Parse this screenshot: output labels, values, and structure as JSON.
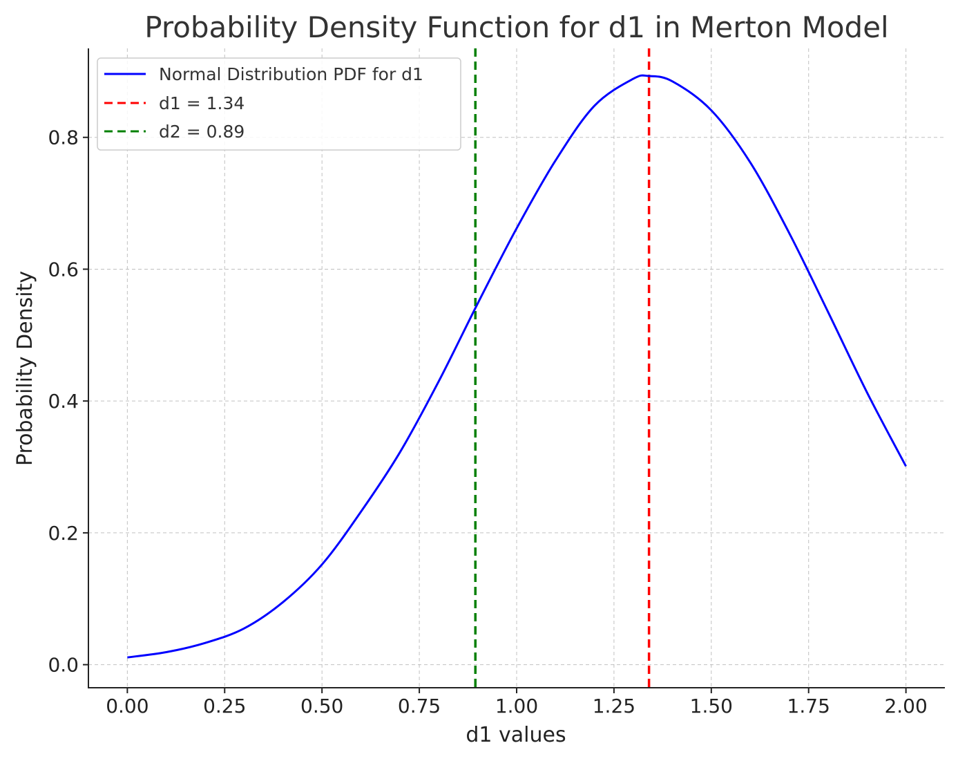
{
  "chart_data": {
    "type": "line",
    "title": "Probability Density Function for d1 in Merton Model",
    "xlabel": "d1 values",
    "ylabel": "Probability Density",
    "xlim": [
      -0.1,
      2.1
    ],
    "ylim": [
      -0.035,
      0.935
    ],
    "x_ticks": [
      0.0,
      0.25,
      0.5,
      0.75,
      1.0,
      1.25,
      1.5,
      1.75,
      2.0
    ],
    "x_tick_labels": [
      "0.00",
      "0.25",
      "0.50",
      "0.75",
      "1.00",
      "1.25",
      "1.50",
      "1.75",
      "2.00"
    ],
    "y_ticks": [
      0.0,
      0.2,
      0.4,
      0.6,
      0.8
    ],
    "y_tick_labels": [
      "0.0",
      "0.2",
      "0.4",
      "0.6",
      "0.8"
    ],
    "grid": true,
    "legend_position": "top-left",
    "series": [
      {
        "name": "Normal Distribution PDF for d1",
        "color": "#0000ff",
        "style": "solid",
        "x": [
          0.0,
          0.1,
          0.2,
          0.3,
          0.4,
          0.5,
          0.6,
          0.7,
          0.8,
          0.9,
          1.0,
          1.1,
          1.2,
          1.3,
          1.34,
          1.4,
          1.5,
          1.6,
          1.7,
          1.8,
          1.9,
          2.0
        ],
        "y": [
          0.011,
          0.019,
          0.033,
          0.055,
          0.095,
          0.152,
          0.232,
          0.322,
          0.43,
          0.548,
          0.662,
          0.765,
          0.848,
          0.889,
          0.893,
          0.885,
          0.841,
          0.762,
          0.655,
          0.535,
          0.413,
          0.301
        ]
      }
    ],
    "vlines": [
      {
        "name": "d1 = 1.34",
        "x": 1.34,
        "color": "#ff0000",
        "style": "dashed"
      },
      {
        "name": "d2 = 0.89",
        "x": 0.894,
        "color": "#008000",
        "style": "dashed"
      }
    ]
  }
}
